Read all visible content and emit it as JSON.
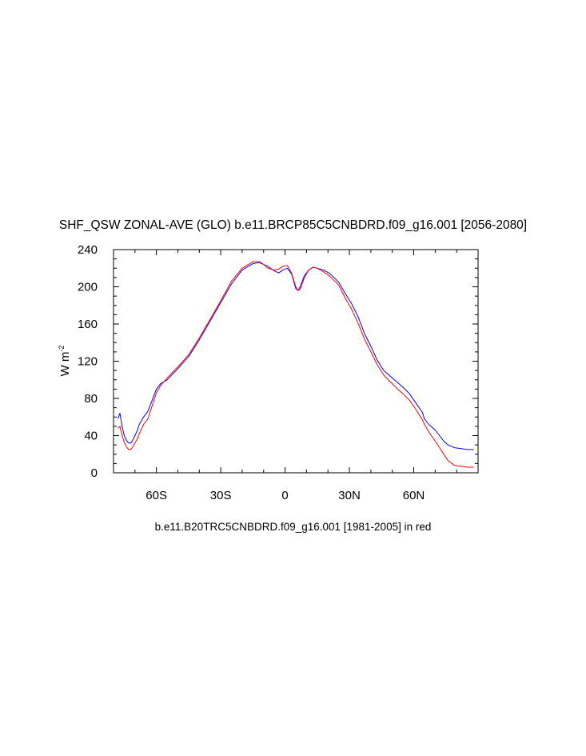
{
  "chart_data": {
    "type": "line",
    "title": "SHF_QSW ZONAL-AVE (GLO) b.e11.BRCP85C5CNBDRD.f09_g16.001 [2056-2080]",
    "caption": "b.e11.B20TRC5CNBDRD.f09_g16.001 [1981-2005] in red",
    "ylabel": "W m",
    "ylabel_sup": "-2",
    "xlim": [
      -80,
      90
    ],
    "ylim": [
      0,
      240
    ],
    "x_ticks": [
      {
        "value": -60,
        "label": "60S"
      },
      {
        "value": -30,
        "label": "30S"
      },
      {
        "value": 0,
        "label": "0"
      },
      {
        "value": 30,
        "label": "30N"
      },
      {
        "value": 60,
        "label": "60N"
      }
    ],
    "y_ticks": [
      0,
      40,
      80,
      120,
      160,
      200,
      240
    ],
    "grid": false,
    "series": [
      {
        "color": "#0000ff",
        "x": [
          -78,
          -77,
          -76,
          -75,
          -74,
          -73,
          -72,
          -71,
          -70,
          -69,
          -68,
          -66,
          -64,
          -62,
          -60,
          -58,
          -55,
          -50,
          -45,
          -40,
          -35,
          -30,
          -25,
          -20,
          -15,
          -12,
          -10,
          -8,
          -5,
          -3,
          -1,
          1,
          3,
          5,
          6,
          7,
          9,
          11,
          13,
          15,
          18,
          21,
          25,
          28,
          31,
          34,
          37,
          40,
          43,
          46,
          49,
          52,
          55,
          58,
          61,
          64,
          65,
          67,
          70,
          72,
          74,
          76,
          79,
          82,
          85,
          88
        ],
        "y": [
          58,
          64,
          50,
          40,
          35,
          32,
          32,
          35,
          40,
          45,
          52,
          60,
          66,
          78,
          90,
          96,
          100,
          112,
          125,
          143,
          163,
          183,
          203,
          218,
          225,
          226,
          224,
          222,
          217,
          215,
          218,
          220,
          214,
          198,
          196,
          200,
          212,
          218,
          221,
          220,
          218,
          214,
          205,
          193,
          182,
          168,
          150,
          136,
          121,
          110,
          104,
          98,
          92,
          85,
          75,
          65,
          58,
          52,
          46,
          40,
          34,
          30,
          27,
          26,
          25,
          25
        ]
      },
      {
        "color": "#ff0000",
        "x": [
          -78,
          -77,
          -76,
          -75,
          -74,
          -73,
          -72,
          -71,
          -70,
          -69,
          -68,
          -66,
          -64,
          -62,
          -60,
          -58,
          -55,
          -50,
          -45,
          -40,
          -35,
          -30,
          -25,
          -20,
          -15,
          -12,
          -10,
          -8,
          -5,
          -3,
          -1,
          1,
          3,
          5,
          6,
          7,
          9,
          11,
          13,
          15,
          18,
          21,
          25,
          28,
          31,
          34,
          37,
          40,
          43,
          46,
          49,
          52,
          55,
          58,
          61,
          64,
          65,
          67,
          70,
          72,
          74,
          76,
          79,
          82,
          85,
          88
        ],
        "y": [
          48,
          50,
          40,
          33,
          28,
          25,
          25,
          28,
          32,
          36,
          42,
          52,
          58,
          72,
          86,
          94,
          102,
          114,
          127,
          145,
          165,
          185,
          206,
          220,
          227,
          227,
          224,
          220,
          218,
          219,
          222,
          223,
          215,
          200,
          196,
          197,
          210,
          218,
          221,
          220,
          216,
          211,
          202,
          188,
          176,
          161,
          144,
          130,
          116,
          105,
          98,
          91,
          85,
          78,
          68,
          57,
          52,
          44,
          34,
          27,
          20,
          13,
          8,
          7,
          6,
          6
        ]
      }
    ]
  }
}
